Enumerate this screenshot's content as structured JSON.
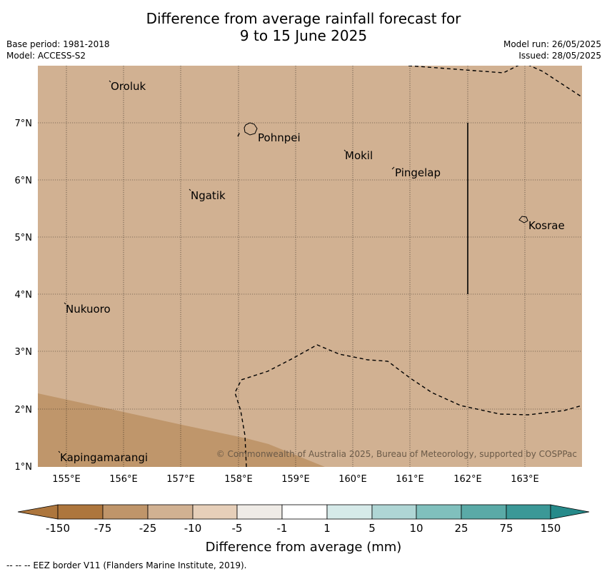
{
  "title": {
    "line1": "Difference from average rainfall forecast for",
    "line2": "9 to 15 June 2025"
  },
  "meta_left": {
    "base_period": "Base period: 1981-2018",
    "model": "Model: ACCESS-S2"
  },
  "meta_right": {
    "model_run": "Model run: 26/05/2025",
    "issued": "Issued: 28/05/2025"
  },
  "map": {
    "lon_ticks": [
      "155°E",
      "156°E",
      "157°E",
      "158°E",
      "159°E",
      "160°E",
      "161°E",
      "162°E",
      "163°E"
    ],
    "lat_ticks": [
      "7°N",
      "6°N",
      "5°N",
      "4°N",
      "3°N",
      "2°N",
      "1°N"
    ],
    "colors": {
      "background": "#d1b192",
      "darker_region": "#bf966b",
      "fill_minus25": "#d1b192"
    },
    "places": [
      {
        "name": "Oroluk"
      },
      {
        "name": "Pohnpei"
      },
      {
        "name": "Mokil"
      },
      {
        "name": "Pingelap"
      },
      {
        "name": "Ngatik"
      },
      {
        "name": "Kosrae"
      },
      {
        "name": "Nukuoro"
      },
      {
        "name": "Kapingamarangi"
      }
    ],
    "copyright": "© Commonwealth of Australia 2025, Bureau of Meteorology, supported by COSPPac"
  },
  "colorbar": {
    "ticks": [
      "-150",
      "-75",
      "-25",
      "-10",
      "-5",
      "-1",
      "1",
      "5",
      "10",
      "25",
      "75",
      "150"
    ],
    "colors": [
      "#ad763d",
      "#bf956a",
      "#d1b192",
      "#e6cfb9",
      "#efebe6",
      "#ffffff",
      "#d6eae9",
      "#afd6d5",
      "#80c0bd",
      "#5aaaa7",
      "#3b9897",
      "#268a8a"
    ],
    "label": "Difference from average (mm)"
  },
  "footer": "--  --  -- EEZ border V11 (Flanders Marine Institute, 2019)."
}
